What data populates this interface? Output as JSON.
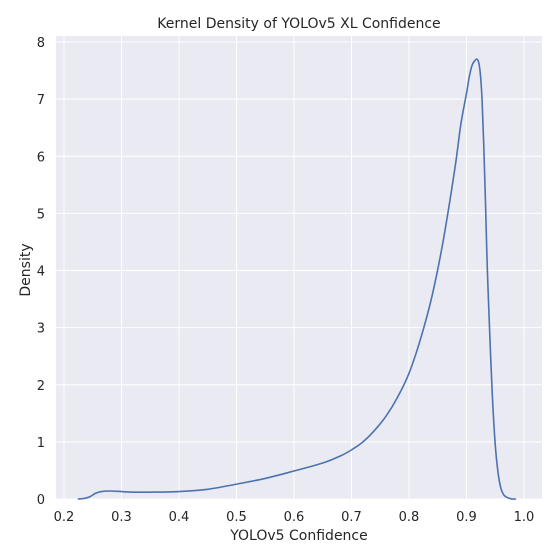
{
  "chart_data": {
    "type": "line",
    "title": "Kernel Density of YOLOv5 XL Confidence",
    "xlabel": "YOLOv5 Confidence",
    "ylabel": "Density",
    "xlim": [
      0.2,
      1.0
    ],
    "ylim": [
      0,
      8
    ],
    "x_ticks": [
      0.2,
      0.3,
      0.4,
      0.5,
      0.6,
      0.7,
      0.8,
      0.9,
      1.0
    ],
    "x_tick_labels": [
      "0.2",
      "0.3",
      "0.4",
      "0.5",
      "0.6",
      "0.7",
      "0.8",
      "0.9",
      "1.0"
    ],
    "y_ticks": [
      0,
      1,
      2,
      3,
      4,
      5,
      6,
      7,
      8
    ],
    "y_tick_labels": [
      "0",
      "1",
      "2",
      "3",
      "4",
      "5",
      "6",
      "7",
      "8"
    ],
    "grid": true,
    "series": [
      {
        "color": "#4c72b0",
        "x": [
          0.225,
          0.235,
          0.245,
          0.255,
          0.265,
          0.28,
          0.3,
          0.32,
          0.35,
          0.4,
          0.45,
          0.5,
          0.55,
          0.6,
          0.65,
          0.68,
          0.7,
          0.72,
          0.74,
          0.76,
          0.78,
          0.8,
          0.82,
          0.84,
          0.86,
          0.88,
          0.89,
          0.9,
          0.905,
          0.91,
          0.915,
          0.918,
          0.921,
          0.924,
          0.927,
          0.93,
          0.933,
          0.936,
          0.94,
          0.945,
          0.95,
          0.955,
          0.96,
          0.965,
          0.97,
          0.975,
          0.98,
          0.985
        ],
        "y": [
          0.0,
          0.01,
          0.04,
          0.1,
          0.13,
          0.14,
          0.13,
          0.12,
          0.12,
          0.13,
          0.17,
          0.26,
          0.36,
          0.49,
          0.63,
          0.75,
          0.86,
          1.0,
          1.2,
          1.45,
          1.78,
          2.2,
          2.8,
          3.55,
          4.55,
          5.8,
          6.55,
          7.1,
          7.4,
          7.6,
          7.68,
          7.7,
          7.65,
          7.45,
          7.0,
          6.2,
          5.2,
          4.1,
          3.0,
          1.8,
          0.95,
          0.45,
          0.18,
          0.07,
          0.03,
          0.01,
          0.0,
          0.0
        ]
      }
    ]
  }
}
